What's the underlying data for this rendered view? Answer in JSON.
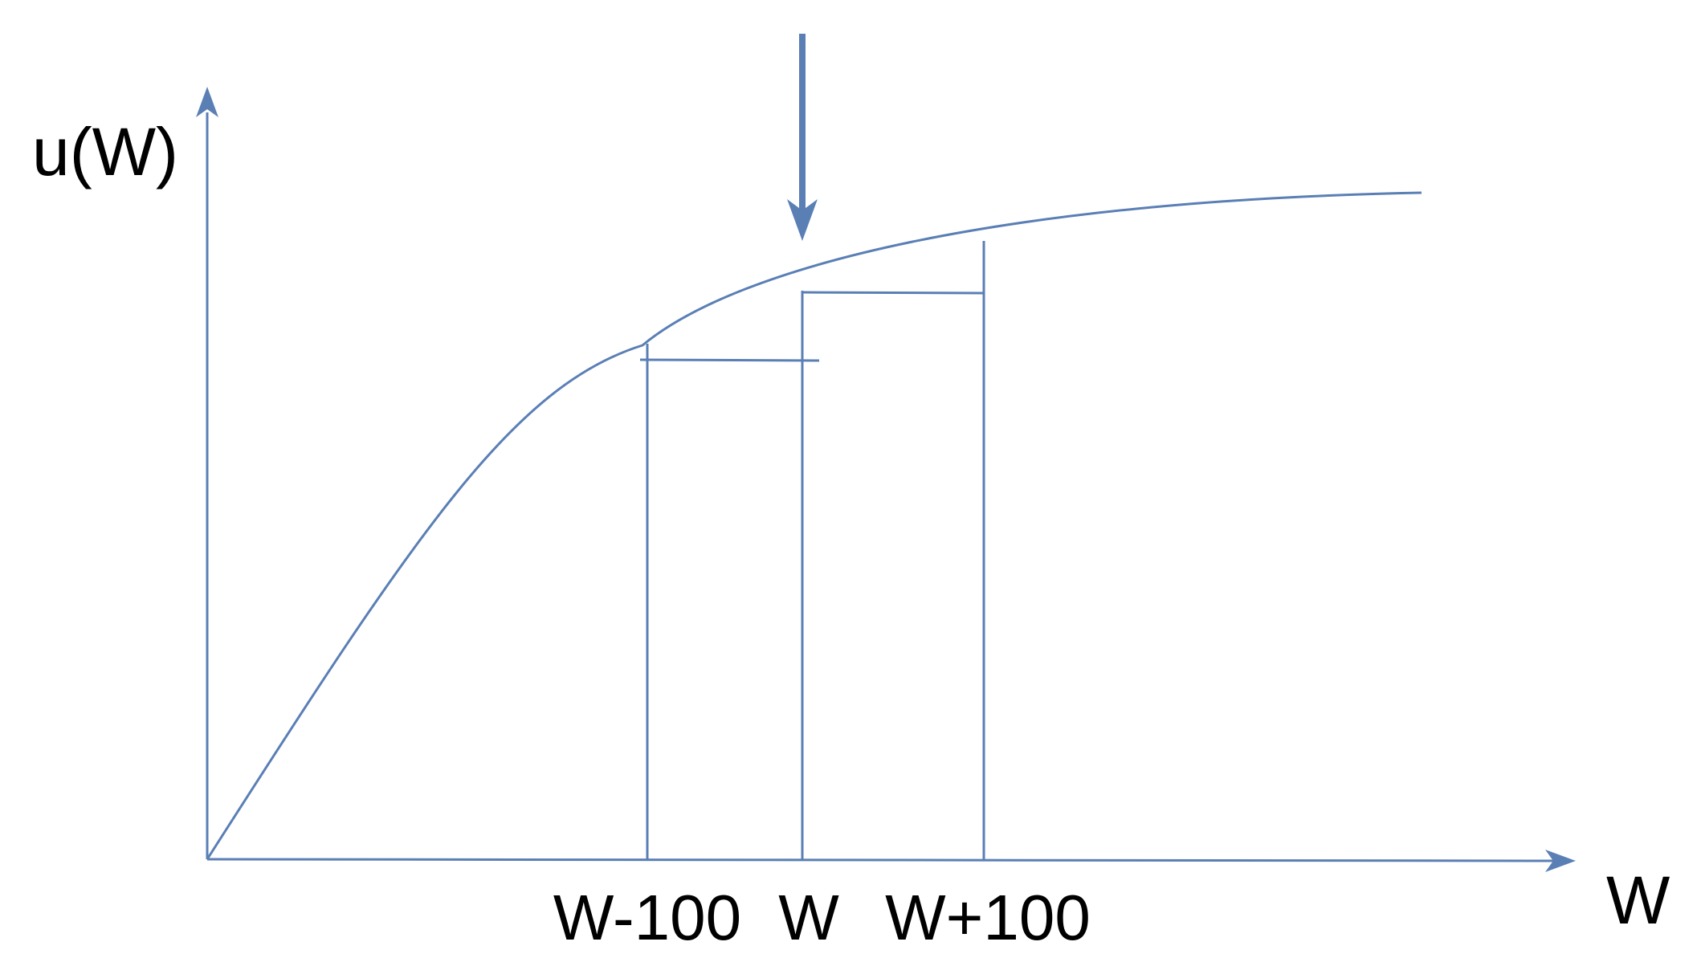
{
  "colors": {
    "line": "#5a7fb5",
    "text": "#000000",
    "background": "#ffffff"
  },
  "axes": {
    "y_label": "u(W)",
    "x_label": "W"
  },
  "ticks": {
    "minus": "W-100",
    "center": "W",
    "plus": "W+100"
  },
  "marker": {
    "icon": "arrow-down-icon"
  }
}
